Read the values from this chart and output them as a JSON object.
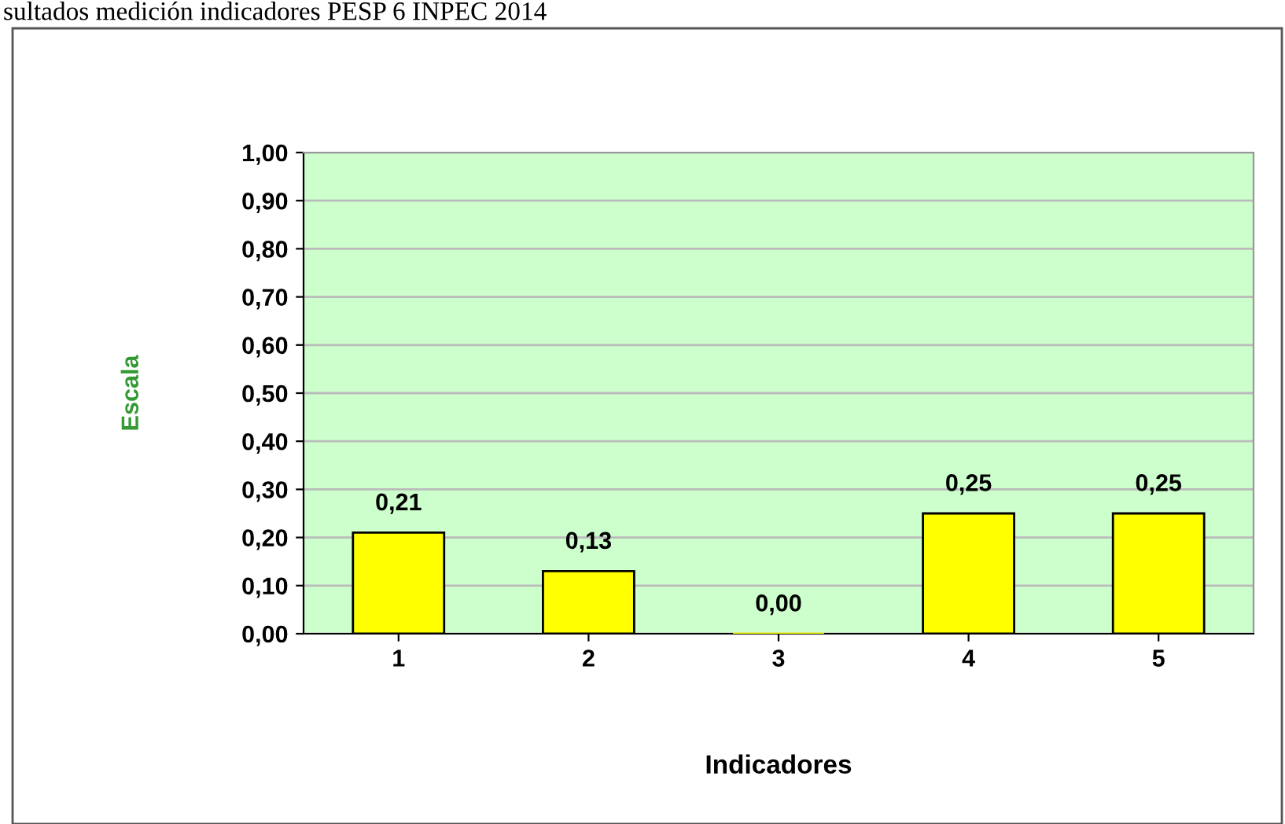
{
  "chart_data": {
    "type": "bar",
    "title": "sultados medición indicadores PESP 6 INPEC 2014",
    "xlabel": "Indicadores",
    "ylabel": "Escala",
    "categories": [
      "1",
      "2",
      "3",
      "4",
      "5"
    ],
    "values": [
      0.21,
      0.13,
      0.0,
      0.25,
      0.25
    ],
    "color": "#ffff00",
    "value_labels": [
      "0,21",
      "0,13",
      "0,00",
      "0,25",
      "0,25"
    ],
    "ylim": [
      0,
      1
    ],
    "yticks": [
      {
        "value": 0,
        "label": "0,00"
      },
      {
        "value": 0.1,
        "label": "0,10"
      },
      {
        "value": 0.2,
        "label": "0,20"
      },
      {
        "value": 0.3,
        "label": "0,30"
      },
      {
        "value": 0.4,
        "label": "0,40"
      },
      {
        "value": 0.5,
        "label": "0,50"
      },
      {
        "value": 0.6,
        "label": "0,60"
      },
      {
        "value": 0.7,
        "label": "0,70"
      },
      {
        "value": 0.8,
        "label": "0,80"
      },
      {
        "value": 0.9,
        "label": "0,90"
      },
      {
        "value": 1,
        "label": "1,00"
      }
    ],
    "grid": "y",
    "legend": false
  }
}
